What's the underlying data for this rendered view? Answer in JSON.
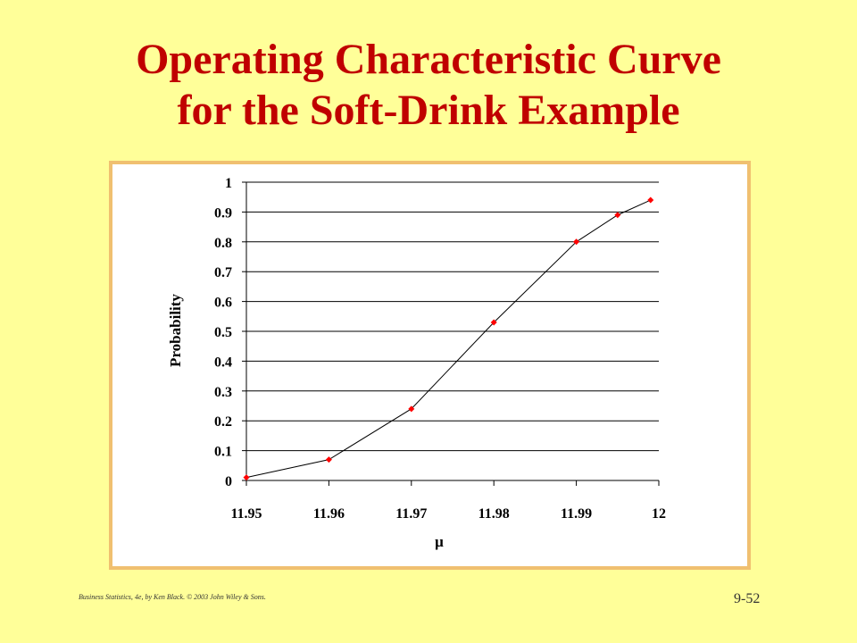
{
  "slide": {
    "title_line1": "Operating Characteristic Curve",
    "title_line2": "for the Soft-Drink Example",
    "footer": "Business Statistics, 4e, by Ken Black. © 2003 John Wiley & Sons.",
    "page_number": "9-52"
  },
  "colors": {
    "background": "#FFFF99",
    "title": "#C00000",
    "frame": "#F0C070",
    "marker": "#FF0000",
    "line": "#000000"
  },
  "chart_data": {
    "type": "line",
    "title": "",
    "xlabel": "μ",
    "ylabel": "Probability",
    "xlim": [
      11.95,
      12
    ],
    "ylim": [
      0,
      1
    ],
    "x_ticks": [
      "11.95",
      "11.96",
      "11.97",
      "11.98",
      "11.99",
      "12"
    ],
    "y_ticks": [
      "0",
      "0.1",
      "0.2",
      "0.3",
      "0.4",
      "0.5",
      "0.6",
      "0.7",
      "0.8",
      "0.9",
      "1"
    ],
    "grid": "horizontal",
    "legend": "none",
    "series": [
      {
        "x": [
          11.95,
          11.96,
          11.97,
          11.98,
          11.99,
          11.995,
          11.999
        ],
        "y": [
          0.01,
          0.07,
          0.24,
          0.53,
          0.8,
          0.89,
          0.94
        ]
      }
    ]
  }
}
